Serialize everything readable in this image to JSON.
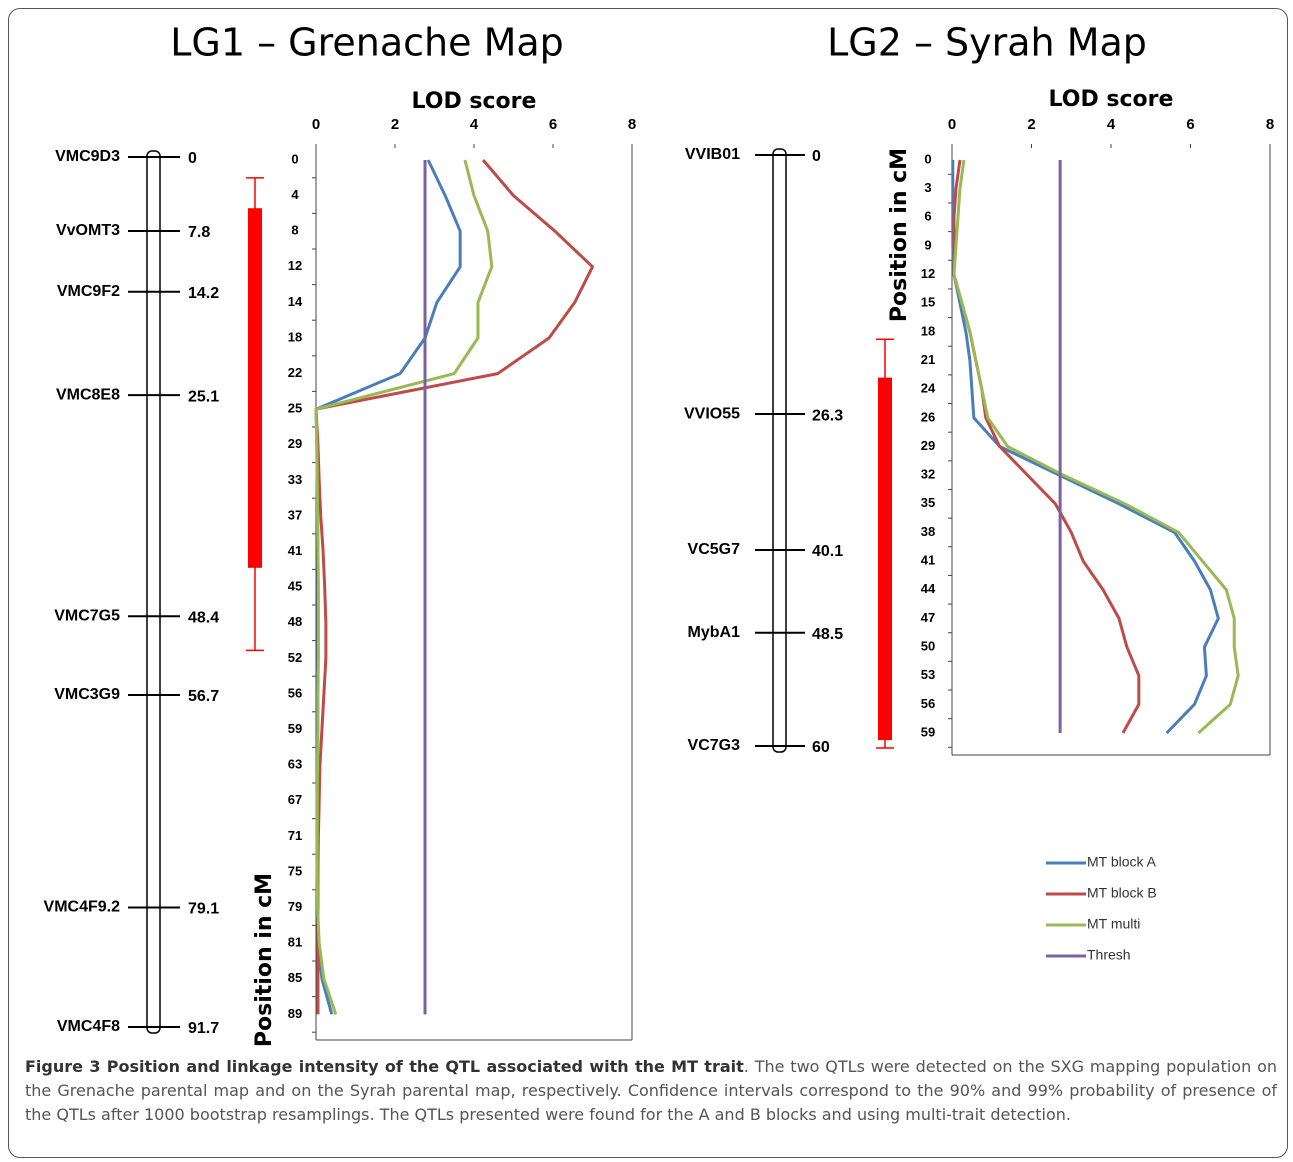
{
  "caption": {
    "label": "Figure 3",
    "title": "Position and linkage intensity of the QTL associated with the MT trait",
    "text": ". The two QTLs were detected on the SXG mapping population on the Grenache parental map and on the Syrah parental map, respectively. Confidence intervals correspond to the 90% and 99% probability of presence of the QTLs after 1000 bootstrap resamplings. The QTLs presented were found for the A and B blocks and using multi-trait detection."
  },
  "maps": [
    {
      "title": "LG1 – Grenache Map",
      "markers": [
        {
          "name": "VMC9D3",
          "position": 0
        },
        {
          "name": "VvOMT3",
          "position": 7.8
        },
        {
          "name": "VMC9F2",
          "position": 14.2
        },
        {
          "name": "VMC8E8",
          "position": 25.1
        },
        {
          "name": "VMC7G5",
          "position": 48.4
        },
        {
          "name": "VMC3G9",
          "position": 56.7
        },
        {
          "name": "VMC4F9.2",
          "position": 79.1
        },
        {
          "name": "VMC4F8",
          "position": 91.7
        }
      ],
      "qtl": {
        "ci90": [
          5.4,
          43.3
        ],
        "ci99": [
          2.2,
          52.0
        ],
        "color": "#ff0000"
      }
    },
    {
      "title": "LG2 – Syrah Map",
      "markers": [
        {
          "name": "VVIB01",
          "position": 0
        },
        {
          "name": "VVIO55",
          "position": 26.3
        },
        {
          "name": "VC5G7",
          "position": 40.1
        },
        {
          "name": "MybA1",
          "position": 48.5
        },
        {
          "name": "VC7G3",
          "position": 60
        }
      ],
      "qtl": {
        "ci90": [
          22.6,
          59.4
        ],
        "ci99": [
          18.7,
          60.2
        ],
        "color": "#ff0000"
      }
    }
  ],
  "chart_data": [
    {
      "type": "line",
      "title": "LOD score",
      "y_label": "Position in cM",
      "categories": [
        "0",
        "4",
        "8",
        "12",
        "14",
        "18",
        "22",
        "25",
        "29",
        "33",
        "37",
        "41",
        "45",
        "48",
        "52",
        "56",
        "59",
        "63",
        "67",
        "71",
        "75",
        "79",
        "81",
        "85",
        "89"
      ],
      "xlim": [
        0,
        8
      ],
      "xticks": [
        0,
        2,
        4,
        6,
        8
      ],
      "series": [
        {
          "color": "#4a7ebb",
          "values": [
            2.84,
            3.27,
            3.65,
            3.65,
            3.06,
            2.76,
            2.13,
            0,
            0.02,
            0.03,
            0.04,
            0.05,
            0.05,
            0.05,
            0.05,
            0.04,
            0.04,
            0.03,
            0.03,
            0.03,
            0.03,
            0.04,
            0.06,
            0.15,
            0.4
          ]
        },
        {
          "color": "#be4b48",
          "values": [
            4.23,
            5.0,
            6.05,
            7.0,
            6.55,
            5.9,
            4.6,
            0,
            0.05,
            0.08,
            0.12,
            0.18,
            0.22,
            0.25,
            0.25,
            0.2,
            0.15,
            0.1,
            0.08,
            0.06,
            0.05,
            0.05,
            0.05,
            0.05,
            0.05
          ]
        },
        {
          "color": "#98b954",
          "values": [
            3.77,
            4.0,
            4.35,
            4.45,
            4.1,
            4.1,
            3.5,
            0,
            0.02,
            0.03,
            0.04,
            0.05,
            0.06,
            0.06,
            0.06,
            0.05,
            0.05,
            0.04,
            0.03,
            0.03,
            0.03,
            0.04,
            0.08,
            0.2,
            0.5
          ]
        },
        {
          "color": "#7d60a0",
          "values": [
            2.76,
            2.76,
            2.76,
            2.76,
            2.76,
            2.76,
            2.76,
            2.76,
            2.76,
            2.76,
            2.76,
            2.76,
            2.76,
            2.76,
            2.76,
            2.76,
            2.76,
            2.76,
            2.76,
            2.76,
            2.76,
            2.76,
            2.76,
            2.76,
            2.76
          ]
        }
      ]
    },
    {
      "type": "line",
      "title": "LOD score",
      "y_label": "Position in cM",
      "categories": [
        "0",
        "3",
        "6",
        "9",
        "12",
        "15",
        "18",
        "21",
        "24",
        "26",
        "29",
        "32",
        "35",
        "38",
        "41",
        "44",
        "47",
        "50",
        "53",
        "56",
        "59"
      ],
      "xlim": [
        0,
        8
      ],
      "xticks": [
        0,
        2,
        4,
        6,
        8
      ],
      "series": [
        {
          "name": "MT block A",
          "color": "#4a7ebb",
          "values": [
            0.02,
            0.02,
            0.02,
            0.02,
            0.05,
            0.2,
            0.35,
            0.45,
            0.5,
            0.55,
            1.2,
            2.7,
            4.2,
            5.6,
            6.1,
            6.5,
            6.7,
            6.35,
            6.4,
            6.1,
            5.4
          ]
        },
        {
          "name": "MT block B",
          "color": "#be4b48",
          "values": [
            0.2,
            0.1,
            0.05,
            0.05,
            0.05,
            0.25,
            0.45,
            0.6,
            0.75,
            0.85,
            1.2,
            1.9,
            2.6,
            3.0,
            3.3,
            3.8,
            4.2,
            4.4,
            4.7,
            4.7,
            4.3
          ]
        },
        {
          "name": "MT multi",
          "color": "#98b954",
          "values": [
            0.3,
            0.2,
            0.15,
            0.1,
            0.05,
            0.25,
            0.45,
            0.6,
            0.75,
            0.9,
            1.4,
            2.8,
            4.35,
            5.7,
            6.3,
            6.9,
            7.1,
            7.1,
            7.2,
            7.0,
            6.2
          ]
        },
        {
          "name": "Thresh",
          "color": "#7d60a0",
          "values": [
            2.72,
            2.72,
            2.72,
            2.72,
            2.72,
            2.72,
            2.72,
            2.72,
            2.72,
            2.72,
            2.72,
            2.72,
            2.72,
            2.72,
            2.72,
            2.72,
            2.72,
            2.72,
            2.72,
            2.72,
            2.72
          ]
        }
      ]
    }
  ]
}
